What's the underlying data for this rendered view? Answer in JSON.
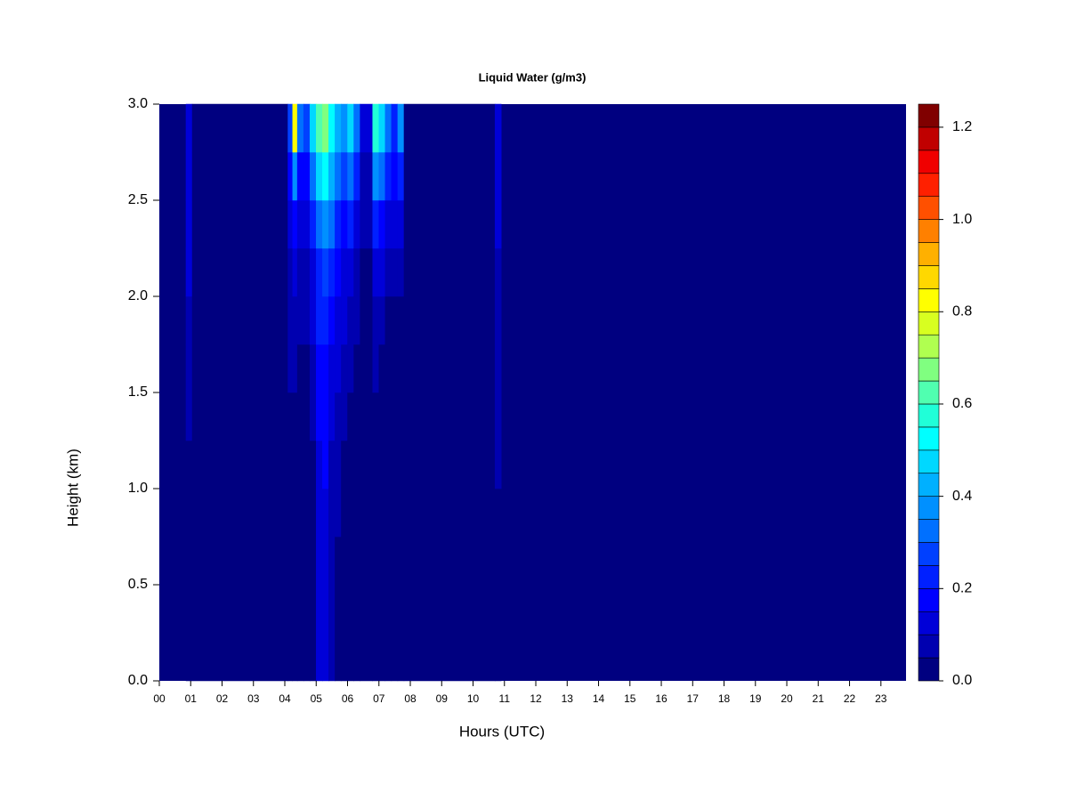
{
  "chart_data": {
    "type": "heatmap",
    "title": "Liquid Water (g/m3)",
    "xlabel": "Hours (UTC)",
    "ylabel": "Height (km)",
    "xlim": [
      0,
      23.8
    ],
    "ylim": [
      0,
      3
    ],
    "xticks": [
      {
        "value": 0,
        "label": "00"
      },
      {
        "value": 1,
        "label": "01"
      },
      {
        "value": 2,
        "label": "02"
      },
      {
        "value": 3,
        "label": "03"
      },
      {
        "value": 4,
        "label": "04"
      },
      {
        "value": 5,
        "label": "05"
      },
      {
        "value": 6,
        "label": "06"
      },
      {
        "value": 7,
        "label": "07"
      },
      {
        "value": 8,
        "label": "08"
      },
      {
        "value": 9,
        "label": "09"
      },
      10,
      11,
      12,
      13,
      14,
      15,
      16,
      17,
      18,
      19,
      20,
      21,
      22,
      23
    ],
    "yticks": [
      {
        "value": 0,
        "label": "0.0"
      },
      {
        "value": 0.5,
        "label": "0.5"
      },
      {
        "value": 1,
        "label": "1.0"
      },
      {
        "value": 1.5,
        "label": "1.5"
      },
      {
        "value": 2,
        "label": "2.0"
      },
      {
        "value": 2.5,
        "label": "2.5"
      },
      {
        "value": 3,
        "label": "3.0"
      }
    ],
    "xbins": [
      0.85,
      1.05,
      4.1,
      4.25,
      4.4,
      4.6,
      4.8,
      5.0,
      5.2,
      5.4,
      5.6,
      5.8,
      6.0,
      6.2,
      6.4,
      6.8,
      7.0,
      7.2,
      7.4,
      7.6,
      7.8,
      10.7,
      10.9
    ],
    "ybins": [
      0,
      0.25,
      0.5,
      0.75,
      1.0,
      1.25,
      1.5,
      1.75,
      2.0,
      2.25,
      2.5,
      2.75,
      3.0
    ],
    "z": [
      [
        0,
        0,
        0,
        0,
        0,
        0.05,
        0.05,
        0.05,
        0.1,
        0.1,
        0.1,
        0.1
      ],
      [
        0,
        0,
        0,
        0,
        0,
        0,
        0,
        0,
        0,
        0,
        0,
        0
      ],
      [
        0,
        0,
        0,
        0,
        0,
        0,
        0.05,
        0.05,
        0.05,
        0.1,
        0.15,
        0.25
      ],
      [
        0,
        0,
        0,
        0,
        0,
        0,
        0.05,
        0.05,
        0.1,
        0.15,
        0.35,
        0.8
      ],
      [
        0,
        0,
        0,
        0,
        0,
        0,
        0,
        0.05,
        0.05,
        0.1,
        0.15,
        0.3
      ],
      [
        0,
        0,
        0,
        0,
        0,
        0,
        0,
        0.05,
        0.05,
        0.1,
        0.15,
        0.25
      ],
      [
        0,
        0,
        0,
        0,
        0,
        0.05,
        0.05,
        0.1,
        0.1,
        0.2,
        0.3,
        0.45
      ],
      [
        0.1,
        0.1,
        0.1,
        0.1,
        0.1,
        0.15,
        0.15,
        0.2,
        0.2,
        0.3,
        0.45,
        0.6
      ],
      [
        0.1,
        0.1,
        0.1,
        0.1,
        0.15,
        0.15,
        0.15,
        0.2,
        0.25,
        0.35,
        0.5,
        0.65
      ],
      [
        0.05,
        0.05,
        0.05,
        0.05,
        0.05,
        0.1,
        0.1,
        0.15,
        0.2,
        0.3,
        0.4,
        0.5
      ],
      [
        0,
        0,
        0,
        0.05,
        0.05,
        0.05,
        0.1,
        0.1,
        0.15,
        0.2,
        0.3,
        0.4
      ],
      [
        0,
        0,
        0,
        0,
        0,
        0.05,
        0.05,
        0.1,
        0.1,
        0.15,
        0.25,
        0.35
      ],
      [
        0,
        0,
        0,
        0,
        0,
        0,
        0.05,
        0.05,
        0.1,
        0.2,
        0.3,
        0.45
      ],
      [
        0,
        0,
        0,
        0,
        0,
        0,
        0,
        0.05,
        0.05,
        0.1,
        0.2,
        0.3
      ],
      [
        0,
        0,
        0,
        0,
        0,
        0,
        0,
        0,
        0,
        0.05,
        0.05,
        0.1
      ],
      [
        0,
        0,
        0,
        0,
        0,
        0,
        0.05,
        0.05,
        0.1,
        0.2,
        0.35,
        0.55
      ],
      [
        0,
        0,
        0,
        0,
        0,
        0,
        0,
        0.05,
        0.1,
        0.15,
        0.3,
        0.45
      ],
      [
        0,
        0,
        0,
        0,
        0,
        0,
        0,
        0,
        0.05,
        0.1,
        0.2,
        0.3
      ],
      [
        0,
        0,
        0,
        0,
        0,
        0,
        0,
        0,
        0.05,
        0.1,
        0.15,
        0.2
      ],
      [
        0,
        0,
        0,
        0,
        0,
        0,
        0,
        0,
        0.05,
        0.1,
        0.2,
        0.35
      ],
      [
        0,
        0,
        0,
        0,
        0,
        0,
        0,
        0,
        0,
        0,
        0,
        0
      ],
      [
        0,
        0,
        0,
        0,
        0.05,
        0.05,
        0.05,
        0.05,
        0.05,
        0.1,
        0.1,
        0.1
      ]
    ],
    "colorbar": {
      "levels": [
        0,
        0.05,
        0.1,
        0.15,
        0.2,
        0.25,
        0.3,
        0.35,
        0.4,
        0.45,
        0.5,
        0.55,
        0.6,
        0.65,
        0.7,
        0.75,
        0.8,
        0.85,
        0.9,
        0.95,
        1.0,
        1.05,
        1.1,
        1.15,
        1.2,
        1.25
      ],
      "colors": [
        "#000080",
        "#0000b0",
        "#0000d8",
        "#0000ff",
        "#0020ff",
        "#0040ff",
        "#0070ff",
        "#0090ff",
        "#00b0ff",
        "#00d8ff",
        "#00ffff",
        "#20ffd8",
        "#50ffb0",
        "#80ff80",
        "#b0ff50",
        "#d8ff20",
        "#ffff00",
        "#ffd800",
        "#ffb000",
        "#ff8000",
        "#ff5000",
        "#ff2000",
        "#f00000",
        "#c00000",
        "#800000"
      ],
      "ticks": [
        {
          "value": 0,
          "label": "0.0"
        },
        {
          "value": 0.2,
          "label": "0.2"
        },
        {
          "value": 0.4,
          "label": "0.4"
        },
        {
          "value": 0.6,
          "label": "0.6"
        },
        {
          "value": 0.8,
          "label": "0.8"
        },
        {
          "value": 1.0,
          "label": "1.0"
        },
        {
          "value": 1.2,
          "label": "1.2"
        }
      ]
    }
  }
}
